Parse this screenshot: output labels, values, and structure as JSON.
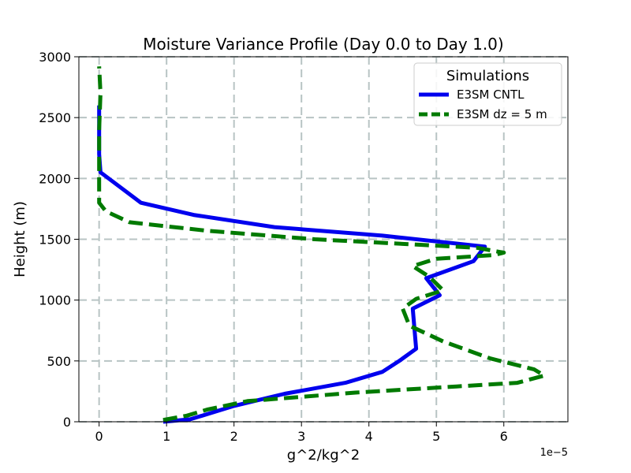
{
  "chart_data": {
    "type": "line",
    "title": "Moisture Variance Profile (Day 0.0 to Day 1.0)",
    "xlabel": "g^2/kg^2",
    "ylabel": "Height (m)",
    "x_offset_label": "1e−5",
    "x_scale": 1e-05,
    "xlim": [
      -0.3,
      6.95
    ],
    "ylim": [
      0,
      3000
    ],
    "xticks": [
      0,
      1,
      2,
      3,
      4,
      5,
      6
    ],
    "yticks": [
      0,
      500,
      1000,
      1500,
      2000,
      2500,
      3000
    ],
    "grid": true,
    "legend": {
      "title": "Simulations",
      "location": "upper right"
    },
    "series": [
      {
        "name": "E3SM CNTL",
        "color": "#0000ee",
        "style": "solid",
        "points": [
          {
            "x": 0.95,
            "y": 0
          },
          {
            "x": 1.35,
            "y": 20
          },
          {
            "x": 2.0,
            "y": 130
          },
          {
            "x": 2.75,
            "y": 230
          },
          {
            "x": 3.65,
            "y": 320
          },
          {
            "x": 4.2,
            "y": 410
          },
          {
            "x": 4.45,
            "y": 500
          },
          {
            "x": 4.7,
            "y": 600
          },
          {
            "x": 4.65,
            "y": 930
          },
          {
            "x": 5.05,
            "y": 1040
          },
          {
            "x": 4.85,
            "y": 1180
          },
          {
            "x": 5.55,
            "y": 1320
          },
          {
            "x": 5.72,
            "y": 1440
          },
          {
            "x": 4.2,
            "y": 1530
          },
          {
            "x": 2.6,
            "y": 1600
          },
          {
            "x": 1.4,
            "y": 1700
          },
          {
            "x": 0.62,
            "y": 1800
          },
          {
            "x": 0.02,
            "y": 2050
          },
          {
            "x": 0.0,
            "y": 2200
          },
          {
            "x": 0.0,
            "y": 2600
          }
        ]
      },
      {
        "name": "E3SM dz = 5 m",
        "color": "#007a00",
        "style": "dashed",
        "points": [
          {
            "x": 0.95,
            "y": 15
          },
          {
            "x": 1.3,
            "y": 50
          },
          {
            "x": 1.6,
            "y": 100
          },
          {
            "x": 2.2,
            "y": 170
          },
          {
            "x": 3.8,
            "y": 240
          },
          {
            "x": 5.3,
            "y": 290
          },
          {
            "x": 6.2,
            "y": 320
          },
          {
            "x": 6.6,
            "y": 380
          },
          {
            "x": 6.45,
            "y": 430
          },
          {
            "x": 5.8,
            "y": 520
          },
          {
            "x": 5.1,
            "y": 660
          },
          {
            "x": 4.6,
            "y": 790
          },
          {
            "x": 4.5,
            "y": 930
          },
          {
            "x": 4.7,
            "y": 1010
          },
          {
            "x": 5.1,
            "y": 1080
          },
          {
            "x": 4.9,
            "y": 1190
          },
          {
            "x": 4.65,
            "y": 1280
          },
          {
            "x": 5.0,
            "y": 1340
          },
          {
            "x": 5.85,
            "y": 1370
          },
          {
            "x": 6.0,
            "y": 1390
          },
          {
            "x": 5.6,
            "y": 1430
          },
          {
            "x": 3.2,
            "y": 1500
          },
          {
            "x": 1.6,
            "y": 1570
          },
          {
            "x": 0.45,
            "y": 1640
          },
          {
            "x": 0.1,
            "y": 1730
          },
          {
            "x": 0.0,
            "y": 1800
          },
          {
            "x": 0.0,
            "y": 2400
          },
          {
            "x": 0.02,
            "y": 2700
          },
          {
            "x": 0.0,
            "y": 2920
          }
        ]
      }
    ]
  }
}
